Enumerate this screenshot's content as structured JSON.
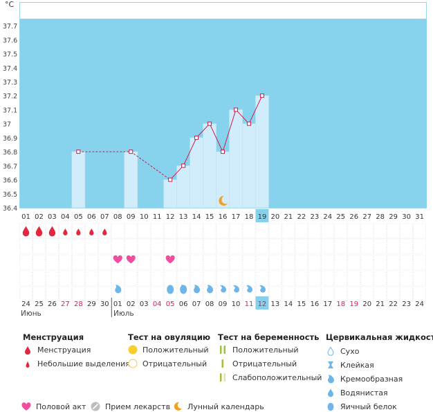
{
  "unit_label": "°C",
  "chart_data": {
    "type": "bar",
    "ylim": [
      36.4,
      37.75
    ],
    "y_ticks": [
      "36.4",
      "36.5",
      "36.6",
      "36.7",
      "36.8",
      "36.9",
      "37",
      "37.1",
      "37.2",
      "37.3",
      "37.4",
      "37.5",
      "37.6",
      "37.7"
    ],
    "x": [
      "01",
      "02",
      "03",
      "04",
      "05",
      "06",
      "07",
      "08",
      "09",
      "10",
      "11",
      "12",
      "13",
      "14",
      "15",
      "16",
      "17",
      "18",
      "19",
      "20",
      "21",
      "22",
      "23",
      "24",
      "25",
      "26",
      "27",
      "28",
      "29",
      "30",
      "31"
    ],
    "values": [
      null,
      null,
      null,
      null,
      36.8,
      null,
      null,
      null,
      36.8,
      null,
      null,
      36.6,
      36.7,
      36.9,
      37.0,
      36.8,
      37.1,
      37.0,
      37.2,
      null,
      null,
      null,
      null,
      null,
      null,
      null,
      null,
      null,
      null,
      null,
      null
    ],
    "highlight_day": "19"
  },
  "menstruation_rows": {
    "menstruation": [
      "01",
      "02",
      "03"
    ],
    "light": [
      "04",
      "05",
      "06",
      "07"
    ]
  },
  "intercourse_days": [
    "08",
    "09",
    "12"
  ],
  "fluid_rows": {
    "creamy": [
      "08",
      "13",
      "14",
      "15"
    ],
    "egg_white": [
      "12",
      "13"
    ],
    "watery": [
      "16",
      "17",
      "18",
      "19"
    ]
  },
  "moon_day": "16",
  "dates": [
    "24",
    "25",
    "26",
    "27",
    "28",
    "29",
    "30",
    "01",
    "02",
    "03",
    "04",
    "05",
    "06",
    "07",
    "08",
    "09",
    "10",
    "11",
    "12",
    "13",
    "14",
    "15",
    "16",
    "17",
    "18",
    "19",
    "20",
    "21",
    "22",
    "23",
    "24"
  ],
  "weekend_indexes": [
    3,
    4,
    10,
    11,
    17,
    18,
    24,
    25
  ],
  "date_highlight_index": 18,
  "month_june": "Июнь",
  "month_july": "Июль",
  "colors": {
    "chart_bg": "#87d3ee",
    "bar": "#d1edfb",
    "line": "#d2194a",
    "red": "#e02840",
    "pink": "#ef4f9e",
    "blue": "#6eb6e8",
    "weekend": "#d42050",
    "highlight": "#87cfea"
  },
  "legend": {
    "menstruation_title": "Менструация",
    "menstruation": "Менструация",
    "light": "Небольшие выделения",
    "ovulation_title": "Тест на овуляцию",
    "ovulation_positive": "Положительный",
    "ovulation_negative": "Отрицательный",
    "pregnancy_title": "Тест на беременность",
    "pregnancy_positive": "Положительный",
    "pregnancy_negative": "Отрицательный",
    "pregnancy_weak": "Слабоположительный",
    "cervical_title": "Цервикальная жидкость",
    "dry": "Сухо",
    "sticky": "Клейкая",
    "creamy": "Кремообразная",
    "watery": "Водянистая",
    "egg_white": "Яичный белок",
    "intercourse": "Половой акт",
    "medication": "Прием лекарств",
    "lunar": "Лунный календарь"
  }
}
